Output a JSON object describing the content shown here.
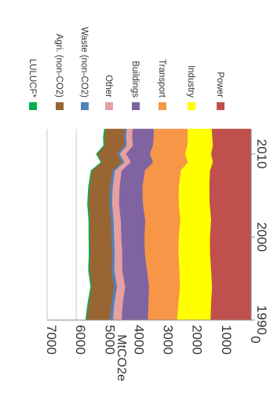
{
  "chart_data": {
    "type": "area",
    "stacked": true,
    "orientation": "rotated-90-clockwise",
    "ylabel": "MtCO2e",
    "xlabel": "",
    "xlim": [
      1990,
      2013
    ],
    "ylim": [
      0,
      7000
    ],
    "x_ticks": [
      "1990",
      "2000",
      "2010"
    ],
    "y_ticks": [
      "0",
      "1000",
      "2000",
      "3000",
      "4000",
      "5000",
      "6000",
      "7000"
    ],
    "grid": true,
    "legend_position": "top",
    "x": [
      1990,
      1992,
      1994,
      1996,
      1998,
      2000,
      2002,
      2004,
      2006,
      2008,
      2009,
      2010,
      2011,
      2012,
      2013
    ],
    "series": [
      {
        "name": "Power",
        "color": "#C0504D",
        "values": [
          1400,
          1380,
          1350,
          1380,
          1420,
          1420,
          1380,
          1430,
          1440,
          1420,
          1320,
          1380,
          1320,
          1340,
          1360
        ]
      },
      {
        "name": "Industry",
        "color": "#FFFF00",
        "values": [
          1150,
          1120,
          1100,
          1090,
          1080,
          1070,
          1060,
          1060,
          1050,
          1000,
          860,
          900,
          880,
          840,
          830
        ]
      },
      {
        "name": "Transport",
        "color": "#F79646",
        "values": [
          1000,
          1030,
          1060,
          1110,
          1150,
          1180,
          1200,
          1230,
          1250,
          1230,
          1190,
          1200,
          1180,
          1170,
          1160
        ]
      },
      {
        "name": "Buildings",
        "color": "#8064A2",
        "values": [
          900,
          880,
          820,
          850,
          780,
          790,
          840,
          820,
          780,
          800,
          760,
          820,
          680,
          740,
          720
        ]
      },
      {
        "name": "Other",
        "color": "#E6A0A0",
        "values": [
          300,
          290,
          280,
          270,
          260,
          250,
          245,
          240,
          235,
          230,
          225,
          220,
          215,
          210,
          205
        ]
      },
      {
        "name": "Waste (non-CO2)",
        "color": "#4F81BD",
        "values": [
          100,
          98,
          96,
          94,
          92,
          90,
          88,
          86,
          84,
          82,
          80,
          78,
          76,
          74,
          72
        ]
      },
      {
        "name": "Agri. (non-CO2)",
        "color": "#996633",
        "values": [
          800,
          780,
          770,
          760,
          750,
          740,
          730,
          720,
          715,
          700,
          690,
          690,
          680,
          670,
          660
        ]
      },
      {
        "name": "LULUCF*",
        "color": "#00B050",
        "values": [
          30,
          30,
          30,
          30,
          30,
          30,
          30,
          30,
          30,
          30,
          30,
          30,
          30,
          30,
          30
        ]
      }
    ]
  }
}
